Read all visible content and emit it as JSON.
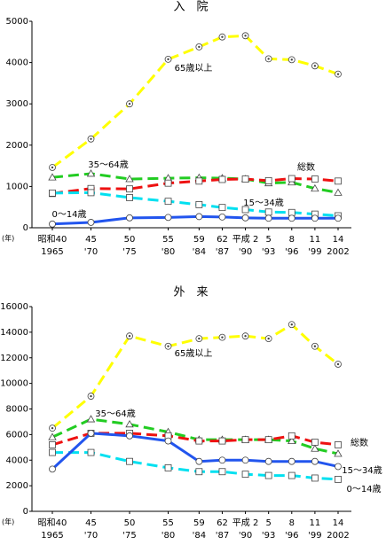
{
  "chart_data": [
    {
      "type": "line",
      "title": "入　院",
      "x": [
        1965,
        1970,
        1975,
        1980,
        1984,
        1987,
        1990,
        1993,
        1996,
        1999,
        2002
      ],
      "x_unit": "(年)",
      "xticks": [
        {
          "value": 1965,
          "label": [
            "昭和40",
            "1965"
          ]
        },
        {
          "value": 1970,
          "label": [
            "45",
            "'70"
          ]
        },
        {
          "value": 1975,
          "label": [
            "50",
            "'75"
          ]
        },
        {
          "value": 1980,
          "label": [
            "55",
            "'80"
          ]
        },
        {
          "value": 1984,
          "label": [
            "59",
            "'84"
          ]
        },
        {
          "value": 1987,
          "label": [
            "62",
            "'87"
          ]
        },
        {
          "value": 1990,
          "label": [
            "平成 2",
            "'90"
          ]
        },
        {
          "value": 1993,
          "label": [
            "5",
            "'93"
          ]
        },
        {
          "value": 1996,
          "label": [
            "8",
            "'96"
          ]
        },
        {
          "value": 1999,
          "label": [
            "11",
            "'99"
          ]
        },
        {
          "value": 2002,
          "label": [
            "14",
            "2002"
          ]
        }
      ],
      "xlim": [
        1962,
        2004
      ],
      "ylim": [
        0,
        5000
      ],
      "yticks": [
        0,
        1000,
        2000,
        3000,
        4000,
        5000
      ],
      "series": [
        {
          "name": "65歳以上",
          "color": "#ffff00",
          "dashed": true,
          "marker": "circle-dot",
          "values": [
            1460,
            2150,
            3000,
            4080,
            4380,
            4620,
            4650,
            4090,
            4070,
            3920,
            3720
          ]
        },
        {
          "name": "35～64歳",
          "color": "#22cc22",
          "dashed": true,
          "marker": "triangle",
          "values": [
            1220,
            1310,
            1180,
            1200,
            1210,
            1200,
            1180,
            1080,
            1100,
            950,
            850
          ]
        },
        {
          "name": "総数",
          "color": "#ee1111",
          "dashed": true,
          "marker": "square",
          "values": [
            830,
            950,
            940,
            1080,
            1130,
            1170,
            1180,
            1140,
            1190,
            1180,
            1130
          ]
        },
        {
          "name": "15～34歳",
          "color": "#00e0f0",
          "dashed": true,
          "marker": "square",
          "values": [
            840,
            850,
            730,
            640,
            560,
            490,
            440,
            380,
            370,
            330,
            290
          ]
        },
        {
          "name": "0～14歳",
          "color": "#2255ee",
          "dashed": false,
          "marker": "circle",
          "values": [
            90,
            130,
            240,
            250,
            270,
            260,
            240,
            230,
            230,
            230,
            230
          ]
        }
      ]
    },
    {
      "type": "line",
      "title": "外　来",
      "x": [
        1965,
        1970,
        1975,
        1980,
        1984,
        1987,
        1990,
        1993,
        1996,
        1999,
        2002
      ],
      "x_unit": "(年)",
      "xticks": [
        {
          "value": 1965,
          "label": [
            "昭和40",
            "1965"
          ]
        },
        {
          "value": 1970,
          "label": [
            "45",
            "'70"
          ]
        },
        {
          "value": 1975,
          "label": [
            "50",
            "'75"
          ]
        },
        {
          "value": 1980,
          "label": [
            "55",
            "'80"
          ]
        },
        {
          "value": 1984,
          "label": [
            "59",
            "'84"
          ]
        },
        {
          "value": 1987,
          "label": [
            "62",
            "'87"
          ]
        },
        {
          "value": 1990,
          "label": [
            "平成 2",
            "'90"
          ]
        },
        {
          "value": 1993,
          "label": [
            "5",
            "'93"
          ]
        },
        {
          "value": 1996,
          "label": [
            "8",
            "'96"
          ]
        },
        {
          "value": 1999,
          "label": [
            "11",
            "'99"
          ]
        },
        {
          "value": 2002,
          "label": [
            "14",
            "2002"
          ]
        }
      ],
      "xlim": [
        1962,
        2004
      ],
      "ylim": [
        0,
        16000
      ],
      "yticks": [
        0,
        2000,
        4000,
        6000,
        8000,
        10000,
        12000,
        14000,
        16000
      ],
      "series": [
        {
          "name": "65歳以上",
          "color": "#ffff00",
          "dashed": true,
          "marker": "circle-dot",
          "values": [
            6500,
            9000,
            13700,
            12900,
            13500,
            13600,
            13700,
            13500,
            14600,
            12900,
            11500
          ]
        },
        {
          "name": "35～64歳",
          "color": "#22cc22",
          "dashed": true,
          "marker": "triangle",
          "values": [
            5800,
            7200,
            6800,
            6200,
            5600,
            5600,
            5600,
            5600,
            5500,
            4900,
            4500
          ]
        },
        {
          "name": "総数",
          "color": "#ee1111",
          "dashed": true,
          "marker": "square",
          "values": [
            5200,
            6100,
            6100,
            5900,
            5500,
            5500,
            5600,
            5600,
            5900,
            5400,
            5200
          ]
        },
        {
          "name": "15～34歳",
          "color": "#00e0f0",
          "dashed": true,
          "marker": "square",
          "values": [
            4600,
            4600,
            3900,
            3400,
            3100,
            3100,
            2900,
            2800,
            2800,
            2600,
            2500
          ]
        },
        {
          "name": "0～14歳",
          "color": "#2255ee",
          "dashed": false,
          "marker": "circle",
          "values": [
            3300,
            6100,
            5900,
            5500,
            3900,
            4000,
            4000,
            3900,
            3900,
            3900,
            3500
          ]
        }
      ]
    }
  ]
}
